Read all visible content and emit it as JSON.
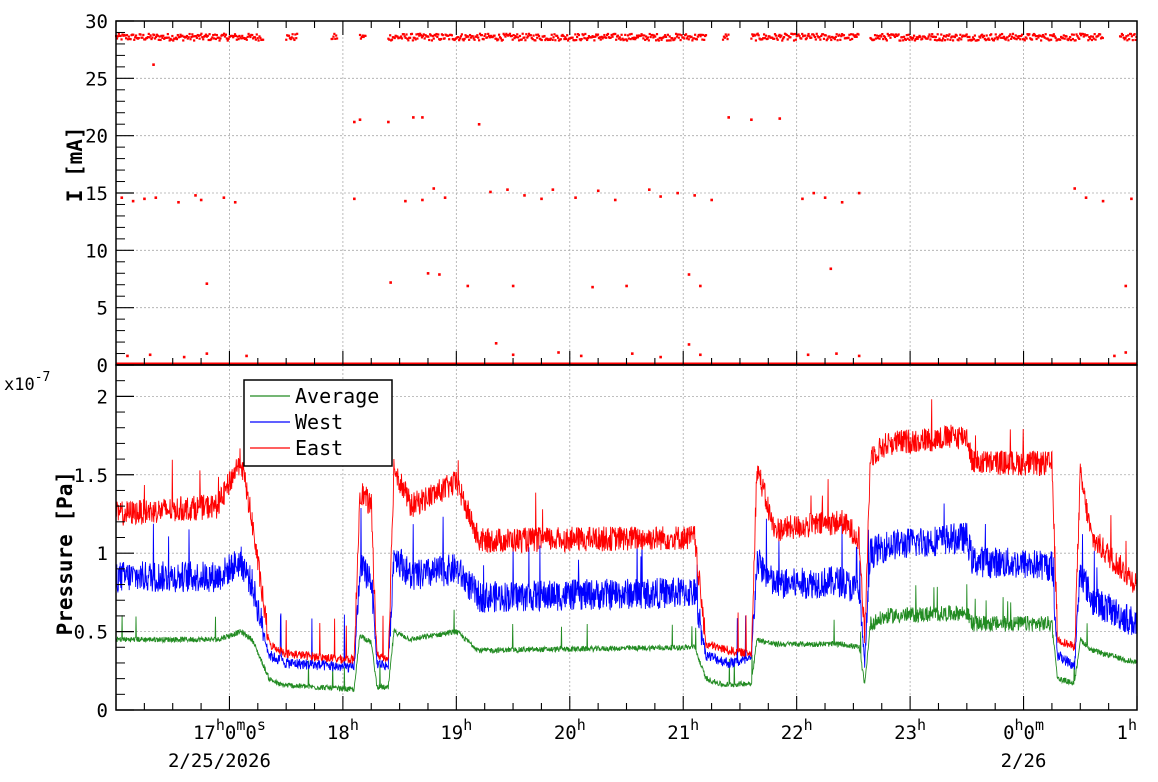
{
  "chart_data": [
    {
      "type": "scatter",
      "panel": "top",
      "ylabel": "I [mA]",
      "ylim": [
        0,
        30
      ],
      "yticks": [
        "0",
        "5",
        "10",
        "15",
        "20",
        "25",
        "30"
      ],
      "xlim": [
        "2/25/2026 16:00",
        "2/26/2026 01:00"
      ],
      "grid": true,
      "series": [
        {
          "color": "#ff0000",
          "segments_at_28_6": [
            [
              16.0,
              17.3
            ],
            [
              17.5,
              17.6
            ],
            [
              17.9,
              17.95
            ],
            [
              18.15,
              18.2
            ],
            [
              18.4,
              21.2
            ],
            [
              21.35,
              21.4
            ],
            [
              21.6,
              22.55
            ],
            [
              22.65,
              24.7
            ],
            [
              24.85,
              25.0
            ]
          ],
          "level_0_span": [
            16.0,
            25.0
          ],
          "points": [
            [
              16.05,
              14.6
            ],
            [
              16.15,
              14.3
            ],
            [
              16.25,
              14.5
            ],
            [
              16.35,
              14.6
            ],
            [
              16.55,
              14.2
            ],
            [
              16.7,
              14.8
            ],
            [
              16.75,
              14.4
            ],
            [
              16.95,
              14.6
            ],
            [
              17.05,
              14.2
            ],
            [
              16.33,
              26.2
            ],
            [
              16.8,
              7.1
            ],
            [
              18.1,
              21.2
            ],
            [
              18.15,
              21.4
            ],
            [
              18.4,
              21.2
            ],
            [
              18.62,
              21.6
            ],
            [
              18.7,
              21.6
            ],
            [
              19.2,
              21.0
            ],
            [
              18.42,
              7.2
            ],
            [
              18.75,
              8.0
            ],
            [
              18.85,
              7.9
            ],
            [
              19.1,
              6.9
            ],
            [
              19.5,
              6.9
            ],
            [
              20.2,
              6.8
            ],
            [
              20.5,
              6.9
            ],
            [
              21.05,
              7.9
            ],
            [
              21.15,
              6.9
            ],
            [
              22.3,
              8.4
            ],
            [
              24.9,
              6.9
            ],
            [
              18.1,
              14.5
            ],
            [
              18.55,
              14.3
            ],
            [
              18.7,
              14.4
            ],
            [
              18.8,
              15.4
            ],
            [
              18.9,
              14.6
            ],
            [
              19.3,
              15.1
            ],
            [
              19.45,
              15.3
            ],
            [
              19.6,
              14.8
            ],
            [
              19.75,
              14.5
            ],
            [
              19.85,
              15.3
            ],
            [
              20.05,
              14.6
            ],
            [
              20.25,
              15.2
            ],
            [
              20.4,
              14.4
            ],
            [
              20.7,
              15.3
            ],
            [
              20.8,
              14.7
            ],
            [
              20.95,
              15.0
            ],
            [
              21.1,
              14.8
            ],
            [
              21.25,
              14.4
            ],
            [
              22.05,
              14.5
            ],
            [
              22.15,
              15.0
            ],
            [
              22.25,
              14.6
            ],
            [
              22.4,
              14.2
            ],
            [
              22.55,
              15.0
            ],
            [
              24.45,
              15.4
            ],
            [
              24.55,
              14.6
            ],
            [
              24.7,
              14.3
            ],
            [
              24.95,
              14.5
            ],
            [
              21.4,
              21.6
            ],
            [
              21.6,
              21.4
            ],
            [
              21.85,
              21.5
            ],
            [
              16.1,
              0.8
            ],
            [
              16.3,
              0.9
            ],
            [
              16.6,
              0.7
            ],
            [
              16.8,
              1.0
            ],
            [
              17.15,
              0.8
            ],
            [
              19.35,
              1.9
            ],
            [
              19.5,
              0.9
            ],
            [
              19.9,
              1.1
            ],
            [
              20.1,
              0.8
            ],
            [
              20.55,
              1.0
            ],
            [
              20.8,
              0.7
            ],
            [
              21.05,
              1.8
            ],
            [
              21.15,
              0.9
            ],
            [
              22.1,
              0.9
            ],
            [
              22.35,
              1.0
            ],
            [
              22.55,
              0.8
            ],
            [
              24.8,
              0.8
            ],
            [
              24.9,
              1.1
            ]
          ]
        }
      ]
    },
    {
      "type": "line",
      "panel": "bottom",
      "ylabel": "Pressure [Pa]",
      "y_multiplier": "x10",
      "y_multiplier_exponent": "-7",
      "ylim": [
        0,
        2.2
      ],
      "yticks": [
        "0",
        "0.5",
        "1",
        "1.5",
        "2"
      ],
      "xlim": [
        "2/25/2026 16:00",
        "2/26/2026 01:00"
      ],
      "xticks": [
        {
          "hour": 17,
          "label": "17",
          "sup1": "h",
          "mid": "0",
          "sup2": "m",
          "mid2": "0",
          "sup3": "s",
          "date": "2/25/2026"
        },
        {
          "hour": 18,
          "label": "18",
          "sup1": "h"
        },
        {
          "hour": 19,
          "label": "19",
          "sup1": "h"
        },
        {
          "hour": 20,
          "label": "20",
          "sup1": "h"
        },
        {
          "hour": 21,
          "label": "21",
          "sup1": "h"
        },
        {
          "hour": 22,
          "label": "22",
          "sup1": "h"
        },
        {
          "hour": 23,
          "label": "23",
          "sup1": "h"
        },
        {
          "hour": 24,
          "label": "0",
          "sup1": "h",
          "mid": "0",
          "sup2": "m",
          "date": "2/26"
        },
        {
          "hour": 25,
          "label": "1",
          "sup1": "h"
        }
      ],
      "grid": true,
      "legend": "top-left",
      "series": [
        {
          "name": "Average",
          "color": "#228b22",
          "knots": [
            [
              16.0,
              0.45
            ],
            [
              16.9,
              0.45
            ],
            [
              17.1,
              0.5
            ],
            [
              17.2,
              0.45
            ],
            [
              17.35,
              0.2
            ],
            [
              17.45,
              0.16
            ],
            [
              17.9,
              0.14
            ],
            [
              18.1,
              0.13
            ],
            [
              18.15,
              0.48
            ],
            [
              18.25,
              0.43
            ],
            [
              18.3,
              0.15
            ],
            [
              18.4,
              0.14
            ],
            [
              18.45,
              0.5
            ],
            [
              18.6,
              0.45
            ],
            [
              19.0,
              0.5
            ],
            [
              19.2,
              0.38
            ],
            [
              21.1,
              0.4
            ],
            [
              21.2,
              0.2
            ],
            [
              21.35,
              0.16
            ],
            [
              21.6,
              0.17
            ],
            [
              21.65,
              0.45
            ],
            [
              21.8,
              0.42
            ],
            [
              22.4,
              0.42
            ],
            [
              22.55,
              0.4
            ],
            [
              22.6,
              0.16
            ],
            [
              22.65,
              0.55
            ],
            [
              22.8,
              0.6
            ],
            [
              23.5,
              0.62
            ],
            [
              23.55,
              0.55
            ],
            [
              24.25,
              0.55
            ],
            [
              24.3,
              0.2
            ],
            [
              24.45,
              0.17
            ],
            [
              24.5,
              0.45
            ],
            [
              24.6,
              0.38
            ],
            [
              25.0,
              0.3
            ]
          ],
          "noise": 0.05
        },
        {
          "name": "West",
          "color": "#0000ff",
          "knots": [
            [
              16.0,
              0.85
            ],
            [
              16.9,
              0.85
            ],
            [
              17.1,
              0.95
            ],
            [
              17.2,
              0.8
            ],
            [
              17.35,
              0.35
            ],
            [
              17.5,
              0.3
            ],
            [
              17.9,
              0.28
            ],
            [
              18.1,
              0.27
            ],
            [
              18.15,
              0.9
            ],
            [
              18.25,
              0.85
            ],
            [
              18.3,
              0.3
            ],
            [
              18.4,
              0.28
            ],
            [
              18.45,
              1.0
            ],
            [
              18.6,
              0.85
            ],
            [
              19.0,
              0.9
            ],
            [
              19.2,
              0.72
            ],
            [
              21.1,
              0.75
            ],
            [
              21.2,
              0.35
            ],
            [
              21.4,
              0.3
            ],
            [
              21.6,
              0.32
            ],
            [
              21.65,
              0.95
            ],
            [
              21.8,
              0.8
            ],
            [
              22.4,
              0.82
            ],
            [
              22.55,
              0.75
            ],
            [
              22.6,
              0.3
            ],
            [
              22.65,
              1.0
            ],
            [
              22.8,
              1.05
            ],
            [
              23.5,
              1.1
            ],
            [
              23.55,
              0.95
            ],
            [
              24.25,
              0.92
            ],
            [
              24.3,
              0.35
            ],
            [
              24.45,
              0.28
            ],
            [
              24.5,
              0.9
            ],
            [
              24.6,
              0.7
            ],
            [
              25.0,
              0.55
            ]
          ],
          "noise": 0.1
        },
        {
          "name": "East",
          "color": "#ff0000",
          "knots": [
            [
              16.0,
              1.25
            ],
            [
              16.9,
              1.3
            ],
            [
              17.1,
              1.6
            ],
            [
              17.2,
              1.2
            ],
            [
              17.35,
              0.42
            ],
            [
              17.5,
              0.36
            ],
            [
              17.9,
              0.33
            ],
            [
              18.1,
              0.32
            ],
            [
              18.15,
              1.4
            ],
            [
              18.25,
              1.3
            ],
            [
              18.3,
              0.35
            ],
            [
              18.4,
              0.33
            ],
            [
              18.45,
              1.55
            ],
            [
              18.6,
              1.3
            ],
            [
              19.0,
              1.45
            ],
            [
              19.2,
              1.08
            ],
            [
              21.1,
              1.1
            ],
            [
              21.2,
              0.42
            ],
            [
              21.4,
              0.38
            ],
            [
              21.6,
              0.36
            ],
            [
              21.65,
              1.55
            ],
            [
              21.8,
              1.15
            ],
            [
              22.4,
              1.2
            ],
            [
              22.55,
              1.1
            ],
            [
              22.6,
              0.45
            ],
            [
              22.65,
              1.62
            ],
            [
              22.8,
              1.7
            ],
            [
              23.5,
              1.75
            ],
            [
              23.55,
              1.58
            ],
            [
              24.25,
              1.57
            ],
            [
              24.3,
              0.45
            ],
            [
              24.45,
              0.4
            ],
            [
              24.5,
              1.5
            ],
            [
              24.6,
              1.1
            ],
            [
              25.0,
              0.8
            ]
          ],
          "noise": 0.08
        }
      ]
    }
  ]
}
